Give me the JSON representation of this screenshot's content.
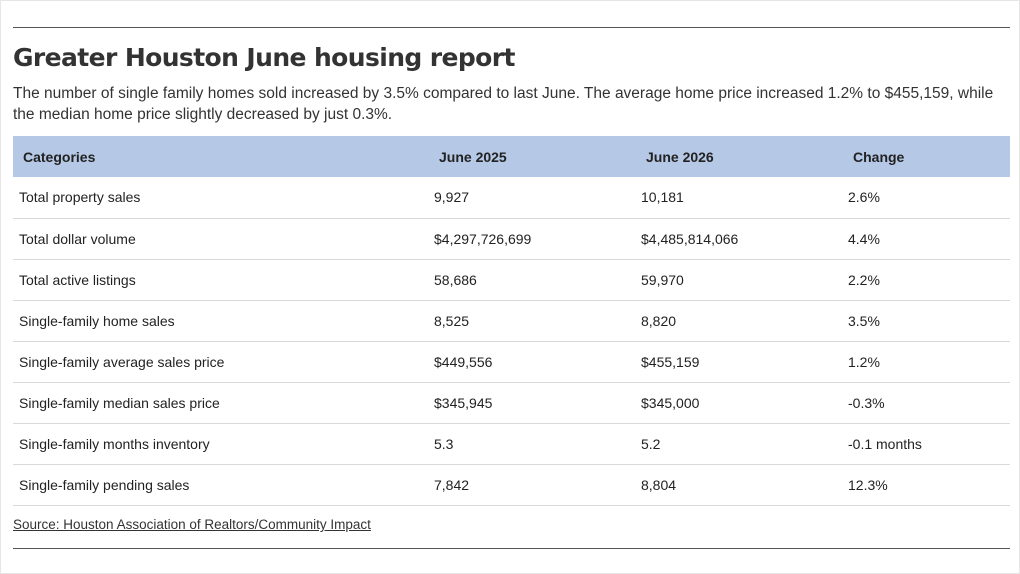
{
  "title": "Greater Houston June housing report",
  "subtitle": "The number of single family homes sold increased by 3.5% compared to last June. The average home price increased 1.2% to $455,159, while the median home price slightly decreased by just 0.3%.",
  "source": "Source: Houston Association of Realtors/Community Impact",
  "colors": {
    "header_bg": "#b5c8e6",
    "row_divider": "#d9d9d9"
  },
  "chart_data": {
    "type": "table",
    "title": "Greater Houston June housing report",
    "columns": [
      "Categories",
      "June 2025",
      "June 2026",
      "Change"
    ],
    "rows": [
      [
        "Total property sales",
        "9,927",
        "10,181",
        "2.6%"
      ],
      [
        "Total dollar volume",
        "$4,297,726,699",
        "$4,485,814,066",
        "4.4%"
      ],
      [
        "Total active listings",
        "58,686",
        "59,970",
        "2.2%"
      ],
      [
        "Single-family home sales",
        "8,525",
        "8,820",
        "3.5%"
      ],
      [
        "Single-family average sales price",
        "$449,556",
        "$455,159",
        "1.2%"
      ],
      [
        "Single-family median sales price",
        "$345,945",
        "$345,000",
        "-0.3%"
      ],
      [
        "Single-family months inventory",
        "5.3",
        "5.2",
        "-0.1 months"
      ],
      [
        "Single-family pending sales",
        "7,842",
        "8,804",
        "12.3%"
      ]
    ]
  }
}
